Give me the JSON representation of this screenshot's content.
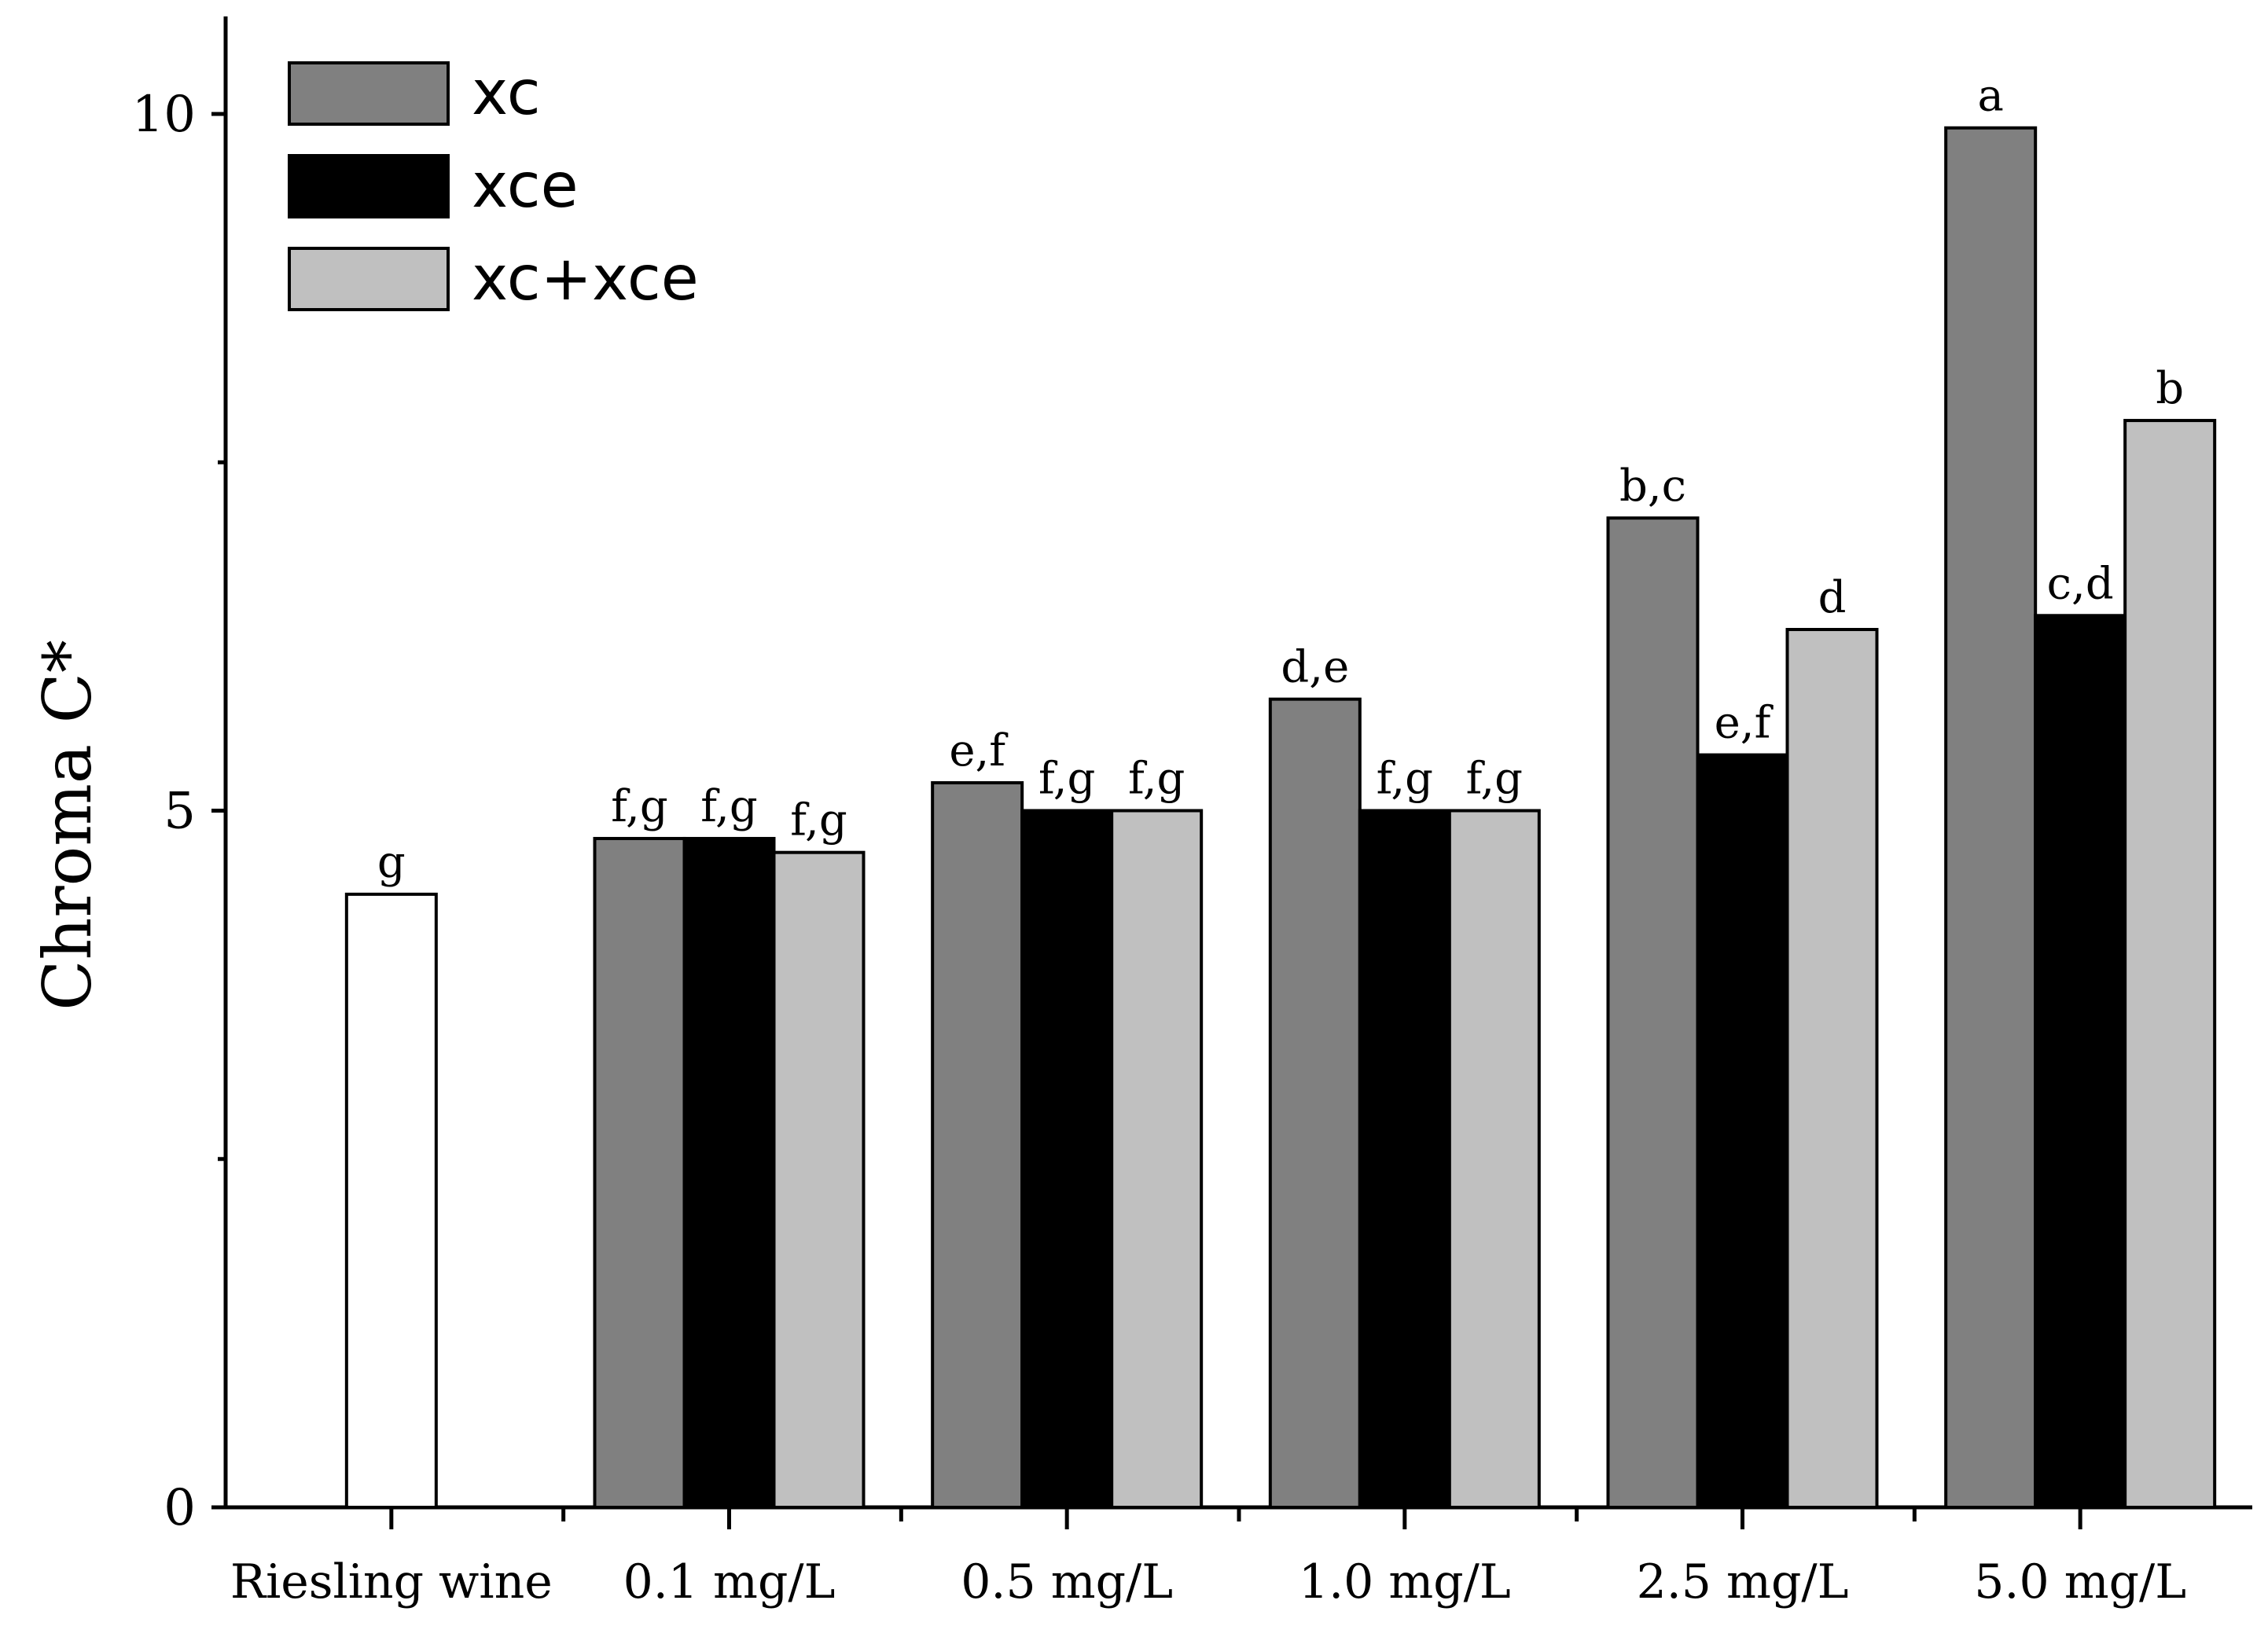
{
  "chart_data": {
    "type": "bar",
    "title": "",
    "xlabel": "",
    "ylabel": "Chroma C*",
    "ylim": [
      0,
      10.7
    ],
    "yticks": [
      0,
      5,
      10
    ],
    "minor_ticks": [
      2.5,
      7.5
    ],
    "legend_position": "top-left",
    "categories": [
      "Riesling wine",
      "0.1 mg/L",
      "0.5 mg/L",
      "1.0 mg/L",
      "2.5 mg/L",
      "5.0 mg/L"
    ],
    "control": {
      "name": "Riesling wine",
      "value": 4.4,
      "label": "g",
      "color": "#ffffff"
    },
    "series": [
      {
        "name": "xc",
        "color": "#808080",
        "values": [
          null,
          4.8,
          5.2,
          5.8,
          7.1,
          9.9
        ],
        "labels": [
          "",
          "f,g",
          "e,f",
          "d,e",
          "b,c",
          "a"
        ]
      },
      {
        "name": "xce",
        "color": "#000000",
        "values": [
          null,
          4.8,
          5.0,
          5.0,
          5.4,
          6.4
        ],
        "labels": [
          "",
          "f,g",
          "f,g",
          "f,g",
          "e,f",
          "c,d"
        ]
      },
      {
        "name": "xc+xce",
        "color": "#c0c0c0",
        "values": [
          null,
          4.7,
          5.0,
          5.0,
          6.3,
          7.8
        ],
        "labels": [
          "",
          "f,g",
          "f,g",
          "f,g",
          "d",
          "b"
        ]
      }
    ]
  }
}
